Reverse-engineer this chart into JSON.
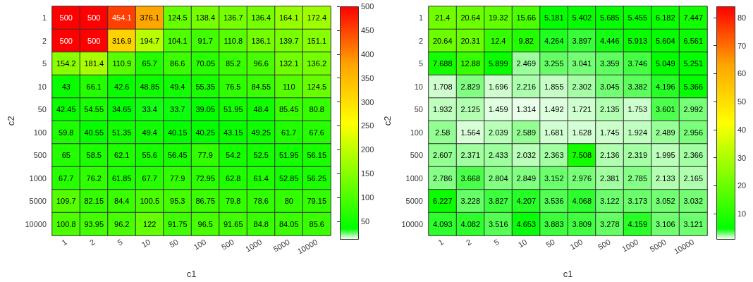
{
  "chart_data": [
    {
      "type": "heatmap",
      "xlabel": "c1",
      "ylabel": "c2",
      "categories": [
        "1",
        "2",
        "5",
        "10",
        "50",
        "100",
        "500",
        "1000",
        "5000",
        "10000"
      ],
      "y_categories": [
        "1",
        "2",
        "5",
        "10",
        "50",
        "100",
        "500",
        "1000",
        "5000",
        "10000"
      ],
      "cells": [
        [
          500,
          500,
          454.1,
          376.1,
          124.5,
          138.4,
          136.7,
          136.4,
          164.1,
          172.4
        ],
        [
          500,
          500,
          316.9,
          194.7,
          104.1,
          91.7,
          110.8,
          136.1,
          139.7,
          151.1
        ],
        [
          154.2,
          181.4,
          110.9,
          65.7,
          86.6,
          70.05,
          85.2,
          96.6,
          132.1,
          136.2
        ],
        [
          43,
          66.1,
          42.6,
          48.85,
          49.4,
          55.35,
          76.5,
          84.55,
          110,
          124.5
        ],
        [
          42.45,
          54.55,
          34.65,
          33.4,
          33.7,
          39.05,
          51.95,
          48.4,
          85.45,
          80.8
        ],
        [
          59.8,
          40.55,
          51.35,
          49.4,
          40.15,
          40.25,
          43.15,
          49.25,
          61.7,
          67.6
        ],
        [
          65,
          58.5,
          62.1,
          55.6,
          56.45,
          77.9,
          54.2,
          52.5,
          51.95,
          56.15
        ],
        [
          67.7,
          76.2,
          61.85,
          67.7,
          77.9,
          72.95,
          62.8,
          61.4,
          52.85,
          56.25
        ],
        [
          109.7,
          82.15,
          84.4,
          100.5,
          95.3,
          86.75,
          79.8,
          78.6,
          80,
          79.15
        ],
        [
          100.8,
          93.95,
          96.2,
          122,
          91.75,
          96.5,
          91.65,
          84.8,
          84.05,
          85.6
        ]
      ],
      "clim": [
        13,
        500
      ],
      "cticks": [
        50,
        100,
        150,
        200,
        250,
        300,
        350,
        400,
        450,
        500
      ],
      "data_labels": true
    },
    {
      "type": "heatmap",
      "xlabel": "c1",
      "ylabel": "c2",
      "categories": [
        "1",
        "2",
        "5",
        "10",
        "50",
        "100",
        "500",
        "1000",
        "5000",
        "10000"
      ],
      "y_categories": [
        "1",
        "2",
        "5",
        "10",
        "50",
        "100",
        "500",
        "1000",
        "5000",
        "10000"
      ],
      "cells": [
        [
          21.4,
          20.64,
          19.32,
          15.66,
          5.181,
          5.402,
          5.685,
          5.455,
          6.182,
          7.447
        ],
        [
          20.64,
          20.31,
          12.4,
          9.82,
          4.264,
          3.897,
          4.446,
          5.913,
          5.604,
          6.561
        ],
        [
          7.688,
          12.88,
          5.899,
          2.469,
          3.255,
          3.041,
          3.359,
          3.746,
          5.049,
          5.251
        ],
        [
          1.708,
          2.829,
          1.696,
          2.216,
          1.855,
          2.302,
          3.045,
          3.382,
          4.196,
          5.366
        ],
        [
          1.932,
          2.125,
          1.459,
          1.314,
          1.492,
          1.721,
          2.135,
          1.753,
          3.601,
          2.992
        ],
        [
          2.58,
          1.564,
          2.039,
          2.589,
          1.681,
          1.628,
          1.745,
          1.924,
          2.489,
          2.956
        ],
        [
          2.607,
          2.371,
          2.433,
          2.032,
          2.363,
          7.508,
          2.136,
          2.319,
          1.995,
          2.366
        ],
        [
          2.786,
          3.668,
          2.804,
          2.849,
          3.152,
          2.976,
          2.381,
          2.785,
          2.133,
          2.165
        ],
        [
          6.227,
          3.228,
          3.827,
          4.207,
          3.536,
          4.068,
          3.122,
          3.173,
          3.052,
          3.032
        ],
        [
          4.093,
          4.082,
          3.516,
          4.653,
          3.883,
          3.809,
          3.278,
          4.159,
          3.106,
          3.121
        ]
      ],
      "clim": [
        1,
        84
      ],
      "cticks": [
        10,
        20,
        30,
        40,
        50,
        60,
        70,
        80
      ],
      "data_labels": true
    }
  ]
}
